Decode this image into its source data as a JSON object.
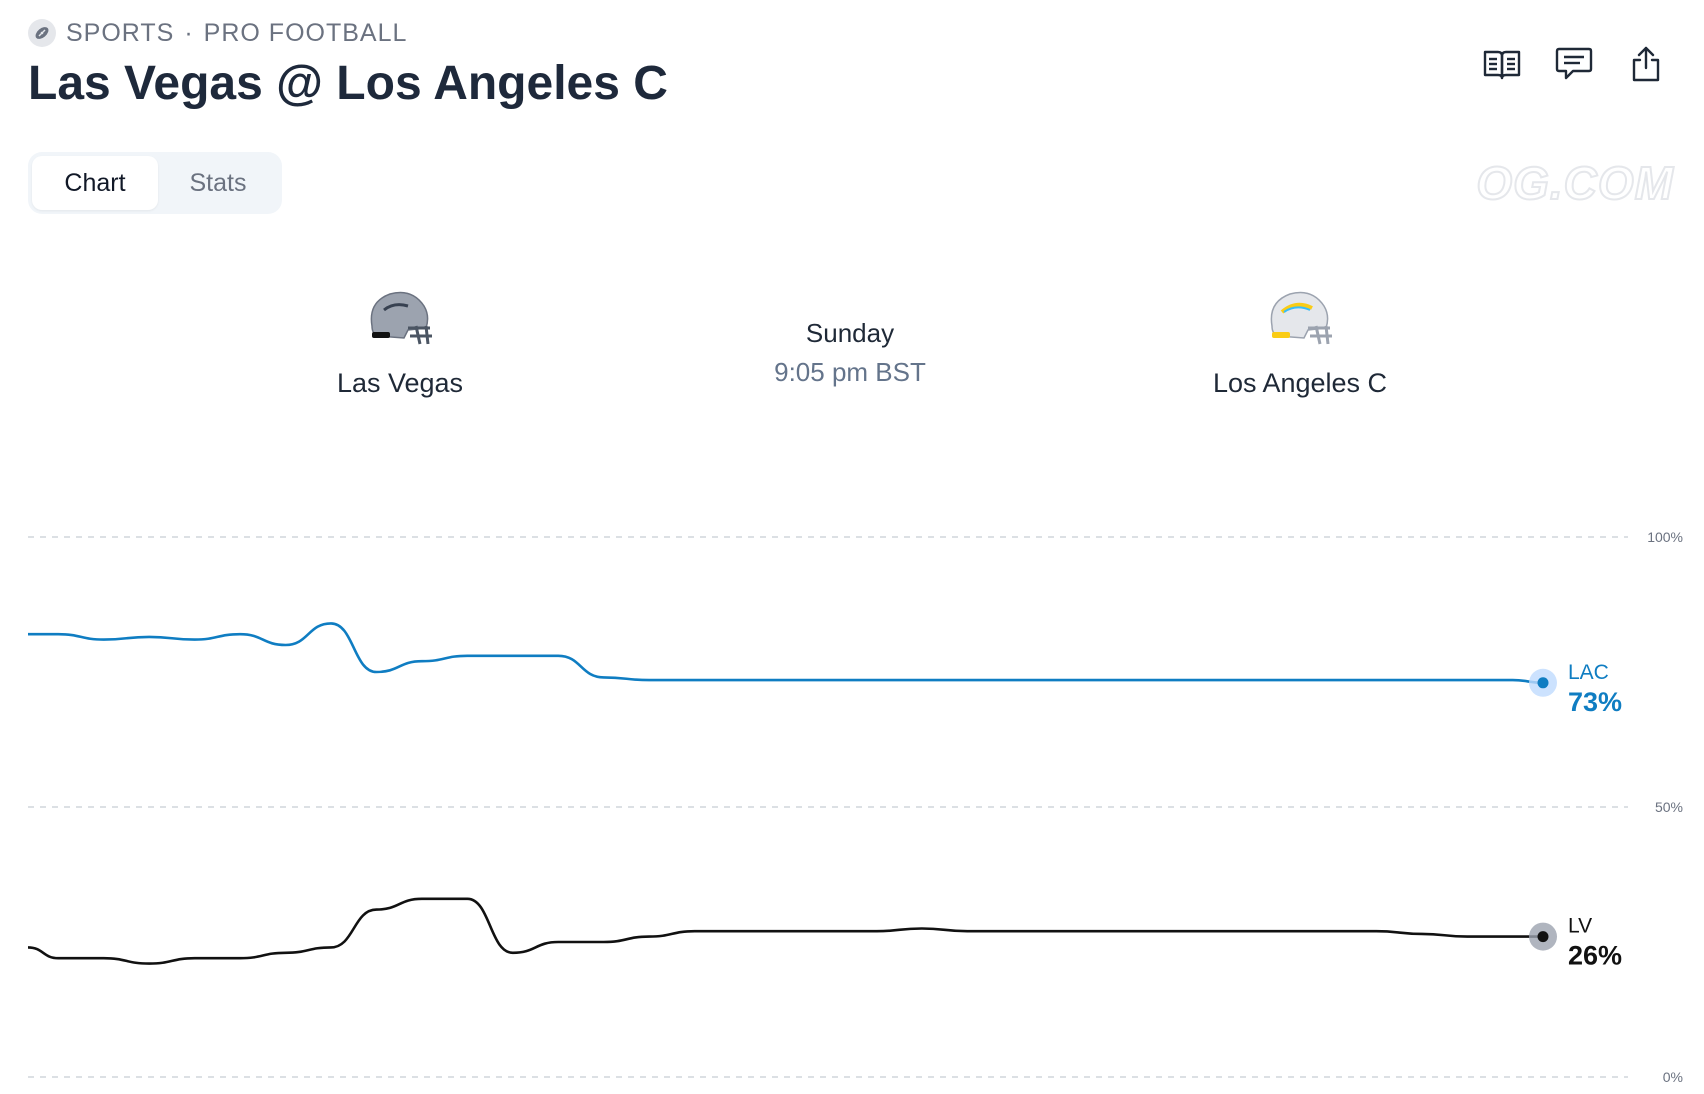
{
  "header": {
    "category": "SPORTS",
    "separator": "·",
    "subcategory": "PRO FOOTBALL",
    "title": "Las Vegas @ Los Angeles C",
    "icons": [
      "football-icon",
      "book-icon",
      "comment-icon",
      "share-icon"
    ]
  },
  "tabs": [
    {
      "label": "Chart",
      "active": true
    },
    {
      "label": "Stats",
      "active": false
    }
  ],
  "watermark": "OG.COM",
  "game": {
    "away": {
      "name": "Las Vegas",
      "helmet_color": "#9ca3af"
    },
    "home": {
      "name": "Los Angeles C",
      "helmet_color": "#e5e7eb",
      "accent": "#facc15"
    },
    "day": "Sunday",
    "time": "9:05 pm BST"
  },
  "chart_data": {
    "type": "line",
    "ylim": [
      0,
      100
    ],
    "yticks": [
      "100%",
      "50%",
      "0%"
    ],
    "grid": true,
    "x": [
      0,
      2,
      5,
      8,
      11,
      14,
      17,
      20,
      23,
      26,
      29,
      32,
      35,
      38,
      41,
      44,
      47,
      50,
      53,
      56,
      59,
      62,
      65,
      68,
      71,
      74,
      77,
      80,
      83,
      86,
      89,
      92,
      95,
      98,
      100
    ],
    "series": [
      {
        "name": "LAC",
        "color": "#0f7dc2",
        "end_label": "73%",
        "values": [
          82,
          82,
          81,
          81.5,
          81,
          82,
          80,
          84,
          75,
          77,
          78,
          78,
          78,
          74,
          73.5,
          73.5,
          73.5,
          73.5,
          73.5,
          73.5,
          73.5,
          73.5,
          73.5,
          73.5,
          73.5,
          73.5,
          73.5,
          73.5,
          73.5,
          73.5,
          73.5,
          73.5,
          73.5,
          73.5,
          73
        ]
      },
      {
        "name": "LV",
        "color": "#111111",
        "end_label": "26%",
        "values": [
          24,
          22,
          22,
          21,
          22,
          22,
          23,
          24,
          31,
          33,
          33,
          23,
          25,
          25,
          26,
          27,
          27,
          27,
          27,
          27,
          27.5,
          27,
          27,
          27,
          27,
          27,
          27,
          27,
          27,
          27,
          27,
          26.5,
          26,
          26,
          26
        ]
      }
    ]
  }
}
